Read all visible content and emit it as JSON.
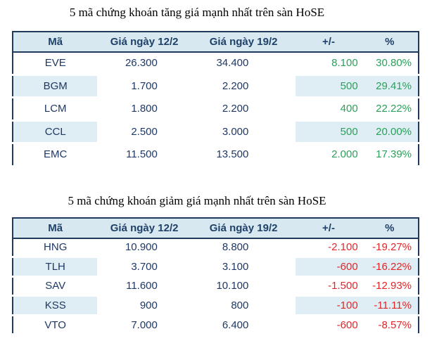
{
  "colors": {
    "gain_text": "#2aa05a",
    "loss_text": "#e42527",
    "body_text": "#1f3864",
    "header_background": "#d8e8f1",
    "stripe_background": "#dfeef4",
    "table_border": "#203a5c"
  },
  "tables": [
    {
      "title": "5 mã chứng khoán tăng giá mạnh nhất trên sàn HoSE",
      "trend": "up",
      "columns": [
        "Mã",
        "Giá ngày 12/2",
        "Giá ngày 19/2",
        "+/-",
        "%"
      ],
      "rows": [
        {
          "code": "EVE",
          "p1": "26.300",
          "p2": "34.400",
          "chg": "8.100",
          "pct": "30.80%"
        },
        {
          "code": "BGM",
          "p1": "1.700",
          "p2": "2.200",
          "chg": "500",
          "pct": "29.41%"
        },
        {
          "code": "LCM",
          "p1": "1.800",
          "p2": "2.200",
          "chg": "400",
          "pct": "22.22%"
        },
        {
          "code": "CCL",
          "p1": "2.500",
          "p2": "3.000",
          "chg": "500",
          "pct": "20.00%"
        },
        {
          "code": "EMC",
          "p1": "11.500",
          "p2": "13.500",
          "chg": "2.000",
          "pct": "17.39%"
        }
      ]
    },
    {
      "title": "5 mã chứng khoán giảm giá mạnh nhất trên sàn HoSE",
      "trend": "down",
      "columns": [
        "Mã",
        "Giá ngày 12/2",
        "Giá ngày 19/2",
        "+/-",
        "%"
      ],
      "rows": [
        {
          "code": "HNG",
          "p1": "10.900",
          "p2": "8.800",
          "chg": "-2.100",
          "pct": "-19.27%"
        },
        {
          "code": "TLH",
          "p1": "3.700",
          "p2": "3.100",
          "chg": "-600",
          "pct": "-16.22%"
        },
        {
          "code": "SAV",
          "p1": "11.600",
          "p2": "10.100",
          "chg": "-1.500",
          "pct": "-12.93%"
        },
        {
          "code": "KSS",
          "p1": "900",
          "p2": "800",
          "chg": "-100",
          "pct": "-11.11%"
        },
        {
          "code": "VTO",
          "p1": "7.000",
          "p2": "6.400",
          "chg": "-600",
          "pct": "-8.57%"
        }
      ]
    }
  ]
}
